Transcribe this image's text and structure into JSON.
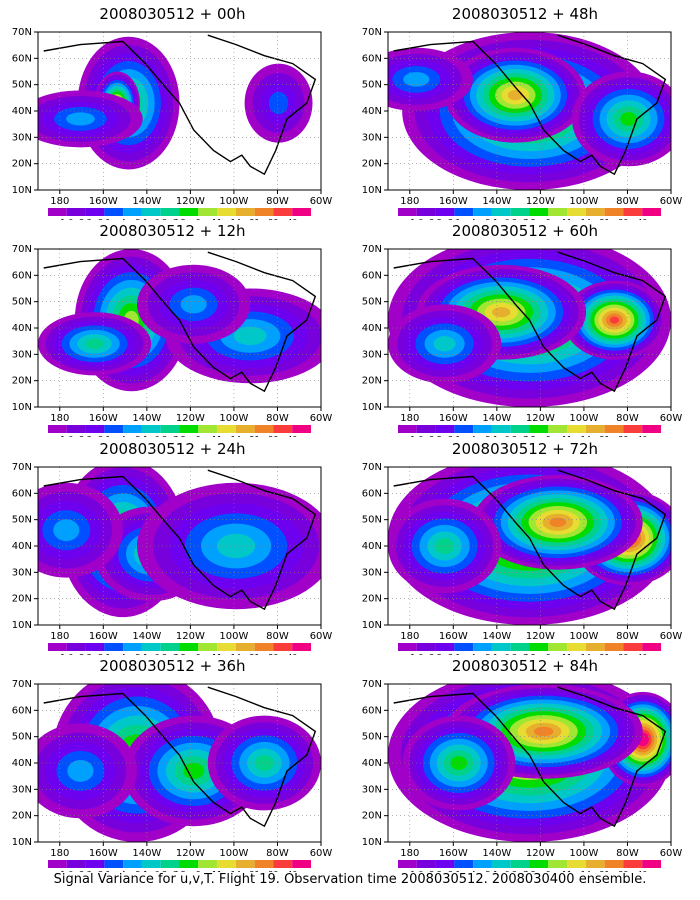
{
  "caption": "Signal Variance for u,v,T. Flight 19. Observation time 2008030512. 2008030400 ensemble.",
  "colorbar": {
    "labels": [
      "1.6",
      "2.2",
      "3.1",
      "4",
      "5.1",
      "6.3",
      "7.5",
      "9",
      "11",
      "14",
      "21",
      "29",
      "40"
    ],
    "colors": [
      "#a000c8",
      "#7800dc",
      "#6e00f0",
      "#0050ff",
      "#00a0ff",
      "#00c8c8",
      "#00d28c",
      "#00dc00",
      "#a0e632",
      "#e6dc32",
      "#e6af2d",
      "#f08228",
      "#fa3c3c",
      "#f00082"
    ]
  },
  "chart_data": [
    {
      "type": "heatmap",
      "title": "2008030512 + 00h",
      "xticks": [
        "180",
        "160W",
        "140W",
        "120W",
        "100W",
        "80W",
        "60W"
      ],
      "yticks": [
        "10N",
        "20N",
        "30N",
        "40N",
        "50N",
        "60N",
        "70N"
      ],
      "xlim": [
        -190,
        -60
      ],
      "ylim": [
        10,
        70
      ]
    },
    {
      "type": "heatmap",
      "title": "2008030512 + 12h",
      "xticks": [
        "180",
        "160W",
        "140W",
        "120W",
        "100W",
        "80W",
        "60W"
      ],
      "yticks": [
        "10N",
        "20N",
        "30N",
        "40N",
        "50N",
        "60N",
        "70N"
      ],
      "xlim": [
        -190,
        -60
      ],
      "ylim": [
        10,
        70
      ]
    },
    {
      "type": "heatmap",
      "title": "2008030512 + 24h",
      "xticks": [
        "180",
        "160W",
        "140W",
        "120W",
        "100W",
        "80W",
        "60W"
      ],
      "yticks": [
        "10N",
        "20N",
        "30N",
        "40N",
        "50N",
        "60N",
        "70N"
      ],
      "xlim": [
        -190,
        -60
      ],
      "ylim": [
        10,
        70
      ]
    },
    {
      "type": "heatmap",
      "title": "2008030512 + 36h",
      "xticks": [
        "180",
        "160W",
        "140W",
        "120W",
        "100W",
        "80W",
        "60W"
      ],
      "yticks": [
        "10N",
        "20N",
        "30N",
        "40N",
        "50N",
        "60N",
        "70N"
      ],
      "xlim": [
        -190,
        -60
      ],
      "ylim": [
        10,
        70
      ]
    },
    {
      "type": "heatmap",
      "title": "2008030512 + 48h",
      "xticks": [
        "180",
        "160W",
        "140W",
        "120W",
        "100W",
        "80W",
        "60W"
      ],
      "yticks": [
        "10N",
        "20N",
        "30N",
        "40N",
        "50N",
        "60N",
        "70N"
      ],
      "xlim": [
        -190,
        -60
      ],
      "ylim": [
        10,
        70
      ]
    },
    {
      "type": "heatmap",
      "title": "2008030512 + 60h",
      "xticks": [
        "180",
        "160W",
        "140W",
        "120W",
        "100W",
        "80W",
        "60W"
      ],
      "yticks": [
        "10N",
        "20N",
        "30N",
        "40N",
        "50N",
        "60N",
        "70N"
      ],
      "xlim": [
        -190,
        -60
      ],
      "ylim": [
        10,
        70
      ]
    },
    {
      "type": "heatmap",
      "title": "2008030512 + 72h",
      "xticks": [
        "180",
        "160W",
        "140W",
        "120W",
        "100W",
        "80W",
        "60W"
      ],
      "yticks": [
        "10N",
        "20N",
        "30N",
        "40N",
        "50N",
        "60N",
        "70N"
      ],
      "xlim": [
        -190,
        -60
      ],
      "ylim": [
        10,
        70
      ]
    },
    {
      "type": "heatmap",
      "title": "2008030512 + 84h",
      "xticks": [
        "180",
        "160W",
        "140W",
        "120W",
        "100W",
        "80W",
        "60W"
      ],
      "yticks": [
        "10N",
        "20N",
        "30N",
        "40N",
        "50N",
        "60N",
        "70N"
      ],
      "xlim": [
        -190,
        -60
      ],
      "ylim": [
        10,
        70
      ]
    }
  ]
}
